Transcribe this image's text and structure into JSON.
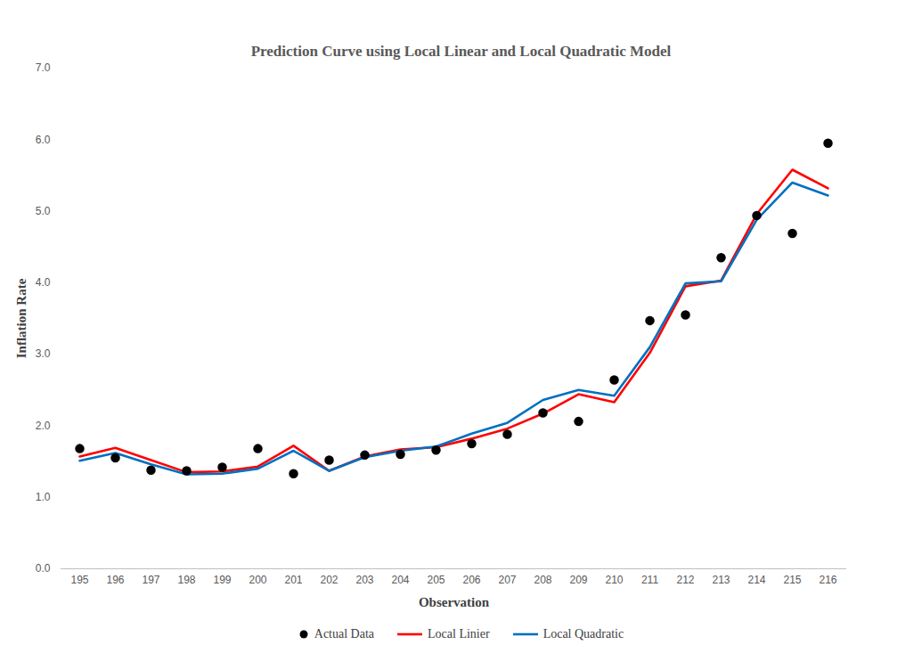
{
  "chart_data": {
    "type": "line",
    "title": "Prediction Curve using Local Linear and Local Quadratic Model",
    "x_label": "Observation",
    "y_label": "Inflation Rate",
    "categories": [
      "195",
      "196",
      "197",
      "198",
      "199",
      "200",
      "201",
      "202",
      "203",
      "204",
      "205",
      "206",
      "207",
      "208",
      "209",
      "210",
      "211",
      "212",
      "213",
      "214",
      "215",
      "216"
    ],
    "series": [
      {
        "name": "Actual Data",
        "color": "#000000",
        "type": "scatter",
        "marker": "circle",
        "values": [
          1.68,
          1.55,
          1.38,
          1.37,
          1.42,
          1.68,
          1.33,
          1.52,
          1.59,
          1.6,
          1.66,
          1.75,
          1.88,
          2.18,
          2.06,
          2.64,
          3.47,
          3.55,
          4.35,
          4.94,
          4.69,
          5.95
        ]
      },
      {
        "name": "Local Linier",
        "color": "#ff0000",
        "type": "line",
        "values": [
          1.57,
          1.69,
          1.52,
          1.35,
          1.36,
          1.43,
          1.72,
          1.37,
          1.57,
          1.67,
          1.7,
          1.82,
          1.96,
          2.17,
          2.44,
          2.33,
          3.02,
          3.95,
          4.03,
          4.96,
          5.58,
          5.32
        ]
      },
      {
        "name": "Local Quadratic",
        "color": "#0070c0",
        "type": "line",
        "values": [
          1.51,
          1.62,
          1.46,
          1.32,
          1.33,
          1.4,
          1.65,
          1.37,
          1.56,
          1.65,
          1.71,
          1.89,
          2.04,
          2.36,
          2.5,
          2.42,
          3.1,
          3.99,
          4.02,
          4.88,
          5.4,
          5.22
        ]
      }
    ],
    "ylim": [
      0,
      7
    ],
    "yticks": [
      0,
      1,
      2,
      3,
      4,
      5,
      6,
      7
    ],
    "grid": false,
    "legend": "bottom"
  }
}
